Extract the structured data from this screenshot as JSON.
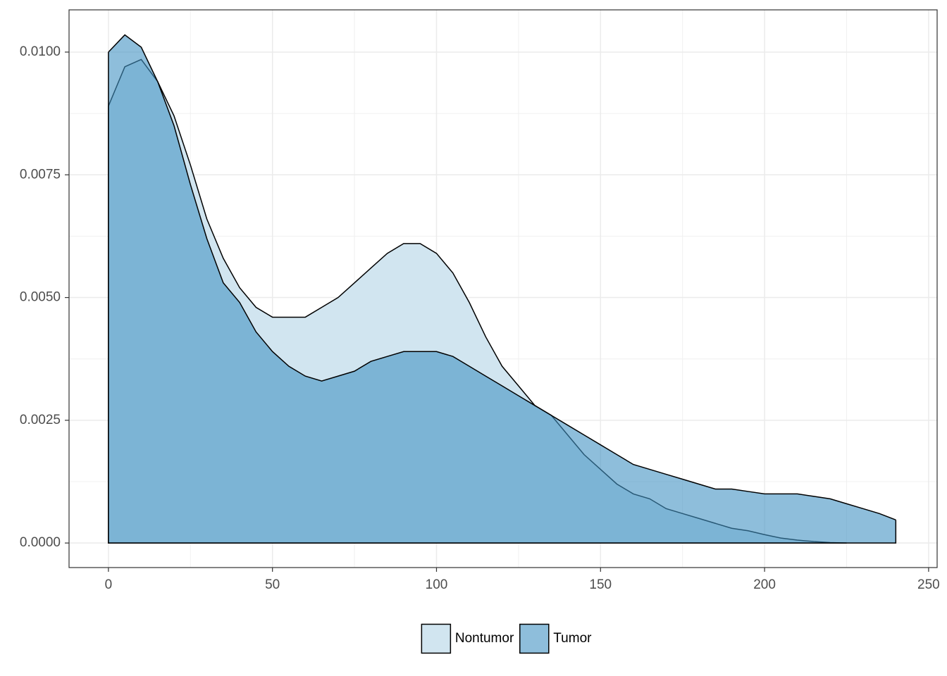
{
  "chart_data": {
    "type": "density",
    "x": [
      0,
      5,
      10,
      15,
      20,
      25,
      30,
      35,
      40,
      45,
      50,
      55,
      60,
      65,
      70,
      75,
      80,
      85,
      90,
      95,
      100,
      105,
      110,
      115,
      120,
      125,
      130,
      135,
      140,
      145,
      150,
      155,
      160,
      165,
      170,
      175,
      180,
      185,
      190,
      195,
      200,
      205,
      210,
      215,
      220,
      225,
      230,
      235,
      240
    ],
    "series": [
      {
        "name": "Nontumor",
        "color": "#d1e5f0",
        "values": [
          0.0089,
          0.0097,
          0.00985,
          0.0094,
          0.0087,
          0.0077,
          0.0066,
          0.0058,
          0.0052,
          0.0048,
          0.0046,
          0.0046,
          0.0046,
          0.0048,
          0.005,
          0.0053,
          0.0056,
          0.0059,
          0.0061,
          0.0061,
          0.0059,
          0.0055,
          0.0049,
          0.0042,
          0.0036,
          0.0032,
          0.0028,
          0.0026,
          0.0022,
          0.0018,
          0.0015,
          0.0012,
          0.001,
          0.0009,
          0.0007,
          0.0006,
          0.0005,
          0.0004,
          0.0003,
          0.00025,
          0.00017,
          0.0001,
          6e-05,
          3e-05,
          1e-05,
          0,
          null,
          null,
          null
        ]
      },
      {
        "name": "Tumor",
        "color": "#4393c3",
        "values": [
          0.01,
          0.01035,
          0.0101,
          0.0094,
          0.0085,
          0.0073,
          0.0062,
          0.0053,
          0.0049,
          0.0043,
          0.0039,
          0.0036,
          0.0034,
          0.0033,
          0.0034,
          0.0035,
          0.0037,
          0.0038,
          0.0039,
          0.0039,
          0.0039,
          0.0038,
          0.0036,
          0.0034,
          0.0032,
          0.003,
          0.0028,
          0.0026,
          0.0024,
          0.0022,
          0.002,
          0.0018,
          0.0016,
          0.0015,
          0.0014,
          0.0013,
          0.0012,
          0.0011,
          0.0011,
          0.00105,
          0.001,
          0.001,
          0.001,
          0.00095,
          0.0009,
          0.0008,
          0.0007,
          0.0006,
          0.00047
        ]
      }
    ],
    "alpha": 0.6,
    "xlim": [
      -12,
      252.6
    ],
    "ylim": [
      -0.0005,
      0.01086
    ],
    "xticks": [
      0,
      50,
      100,
      150,
      200,
      250
    ],
    "yticks": [
      {
        "value": 0,
        "label": "0.0000"
      },
      {
        "value": 0.0025,
        "label": "0.0025"
      },
      {
        "value": 0.005,
        "label": "0.0050"
      },
      {
        "value": 0.0075,
        "label": "0.0075"
      },
      {
        "value": 0.01,
        "label": "0.0100"
      }
    ],
    "grid": true,
    "legend": "bottom"
  }
}
